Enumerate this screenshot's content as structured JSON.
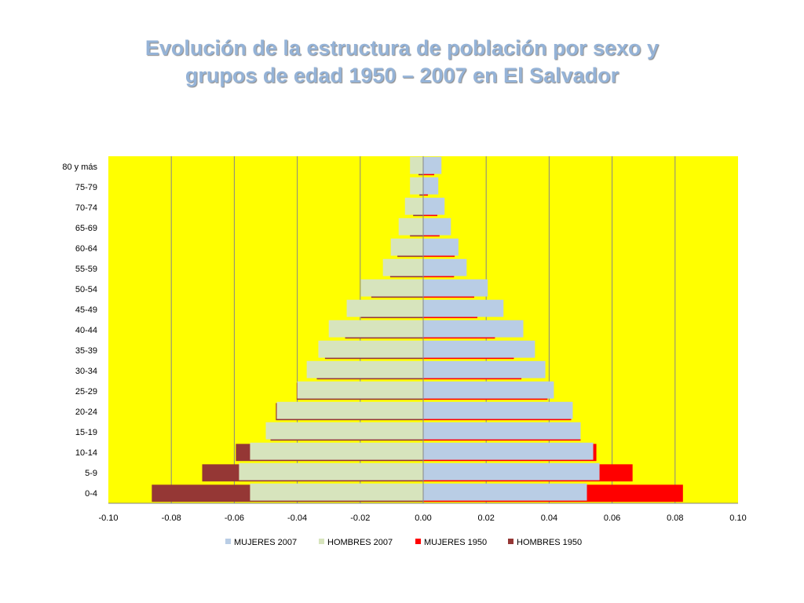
{
  "title": {
    "line1": "Evolución de la estructura de población por sexo y",
    "line2": "grupos de edad 1950 – 2007 en El Salvador"
  },
  "chart_data": {
    "type": "bar",
    "orientation": "horizontal",
    "title": "",
    "categories": [
      "0-4",
      "5-9",
      "10-14",
      "15-19",
      "20-24",
      "25-29",
      "30-34",
      "35-39",
      "40-44",
      "45-49",
      "50-54",
      "55-59",
      "60-64",
      "65-69",
      "70-74",
      "75-79",
      "80 y más"
    ],
    "series": [
      {
        "name": "MUJERES 2007",
        "color": "#b9cde5",
        "values": [
          0.052,
          0.056,
          0.054,
          0.05,
          0.0475,
          0.0415,
          0.0388,
          0.0355,
          0.0318,
          0.0255,
          0.0205,
          0.0138,
          0.0112,
          0.0088,
          0.0068,
          0.0048,
          0.0058
        ]
      },
      {
        "name": "HOMBRES 2007",
        "color": "#d7e4bd",
        "values": [
          -0.055,
          -0.0585,
          -0.055,
          -0.05,
          -0.0465,
          -0.04,
          -0.037,
          -0.0333,
          -0.03,
          -0.0243,
          -0.0198,
          -0.0128,
          -0.0103,
          -0.0078,
          -0.0058,
          -0.0042,
          -0.0042
        ]
      },
      {
        "name": "MUJERES 1950",
        "color": "#ff0000",
        "values": [
          0.0825,
          0.0665,
          0.055,
          0.05,
          0.047,
          0.0395,
          0.0312,
          0.0288,
          0.0228,
          0.0172,
          0.0162,
          0.0098,
          0.01,
          0.0052,
          0.0045,
          0.0015,
          0.0035
        ]
      },
      {
        "name": "HOMBRES 1950",
        "color": "#953735",
        "values": [
          -0.0862,
          -0.0702,
          -0.0595,
          -0.0485,
          -0.0468,
          -0.0402,
          -0.0338,
          -0.0312,
          -0.0248,
          -0.0198,
          -0.0165,
          -0.0105,
          -0.0082,
          -0.0042,
          -0.0032,
          -0.0012,
          -0.0015
        ]
      }
    ],
    "xlim": [
      -0.1,
      0.1
    ],
    "xticks": [
      "-0.10",
      "-0.08",
      "-0.06",
      "-0.04",
      "-0.02",
      "0.00",
      "0.02",
      "0.04",
      "0.06",
      "0.08",
      "0.10"
    ],
    "xtick_values": [
      -0.1,
      -0.08,
      -0.06,
      -0.04,
      -0.02,
      0.0,
      0.02,
      0.04,
      0.06,
      0.08,
      0.1
    ],
    "plot_background": "#ffff00",
    "grid": "vertical",
    "legend_position": "bottom",
    "xlabel": "",
    "ylabel": ""
  }
}
